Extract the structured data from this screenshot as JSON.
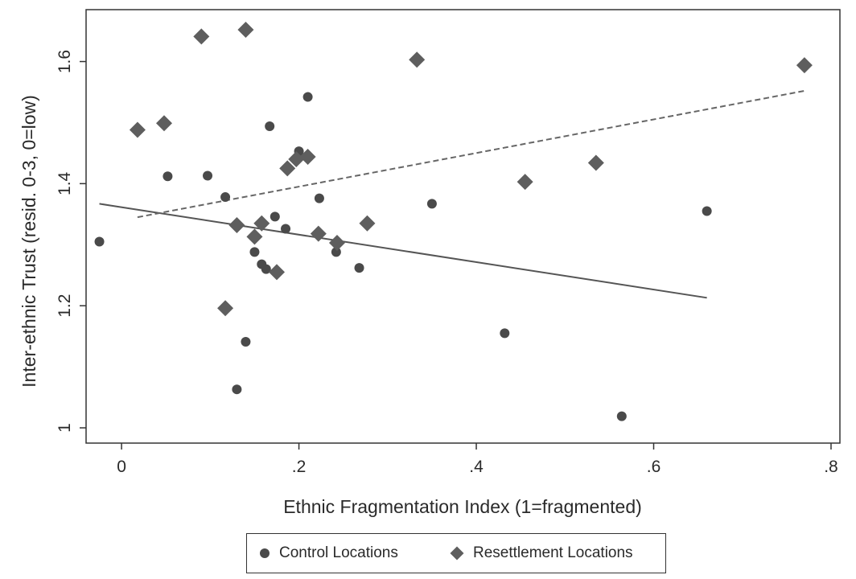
{
  "chart_data": {
    "type": "scatter",
    "xlabel": "Ethnic Fragmentation Index (1=fragmented)",
    "ylabel": "Inter-ethnic Trust (resid. 0-3, 0=low)",
    "xlim": [
      -0.04,
      0.81
    ],
    "ylim": [
      0.975,
      1.685
    ],
    "x_ticks": [
      {
        "value": 0,
        "label": "0"
      },
      {
        "value": 0.2,
        "label": ".2"
      },
      {
        "value": 0.4,
        "label": ".4"
      },
      {
        "value": 0.6,
        "label": ".6"
      },
      {
        "value": 0.8,
        "label": ".8"
      }
    ],
    "y_ticks": [
      {
        "value": 1.0,
        "label": "1"
      },
      {
        "value": 1.2,
        "label": "1.2"
      },
      {
        "value": 1.4,
        "label": "1.4"
      },
      {
        "value": 1.6,
        "label": "1.6"
      }
    ],
    "grid": false,
    "legend": "bottom",
    "series": [
      {
        "name": "Control Locations",
        "marker": "circle",
        "color": "#4a4a4a",
        "points": [
          [
            -0.025,
            1.305
          ],
          [
            0.052,
            1.412
          ],
          [
            0.097,
            1.413
          ],
          [
            0.117,
            1.378
          ],
          [
            0.13,
            1.063
          ],
          [
            0.14,
            1.141
          ],
          [
            0.15,
            1.288
          ],
          [
            0.158,
            1.268
          ],
          [
            0.163,
            1.26
          ],
          [
            0.167,
            1.494
          ],
          [
            0.173,
            1.346
          ],
          [
            0.185,
            1.326
          ],
          [
            0.2,
            1.453
          ],
          [
            0.21,
            1.542
          ],
          [
            0.223,
            1.376
          ],
          [
            0.242,
            1.288
          ],
          [
            0.268,
            1.262
          ],
          [
            0.35,
            1.367
          ],
          [
            0.432,
            1.155
          ],
          [
            0.564,
            1.019
          ],
          [
            0.66,
            1.355
          ]
        ]
      },
      {
        "name": "Resettlement Locations",
        "marker": "diamond",
        "color": "#5e5e5e",
        "points": [
          [
            0.018,
            1.488
          ],
          [
            0.048,
            1.499
          ],
          [
            0.09,
            1.641
          ],
          [
            0.117,
            1.196
          ],
          [
            0.14,
            1.652
          ],
          [
            0.13,
            1.332
          ],
          [
            0.15,
            1.313
          ],
          [
            0.158,
            1.335
          ],
          [
            0.175,
            1.255
          ],
          [
            0.187,
            1.425
          ],
          [
            0.197,
            1.44
          ],
          [
            0.21,
            1.444
          ],
          [
            0.222,
            1.318
          ],
          [
            0.243,
            1.303
          ],
          [
            0.277,
            1.335
          ],
          [
            0.333,
            1.603
          ],
          [
            0.455,
            1.403
          ],
          [
            0.535,
            1.434
          ],
          [
            0.77,
            1.594
          ]
        ]
      }
    ],
    "fit_lines": [
      {
        "series": "Control Locations",
        "style": "solid",
        "color": "#555555",
        "x": [
          -0.025,
          0.66
        ],
        "y": [
          1.367,
          1.213
        ]
      },
      {
        "series": "Resettlement Locations",
        "style": "dashed",
        "color": "#666666",
        "x": [
          0.018,
          0.77
        ],
        "y": [
          1.345,
          1.552
        ]
      }
    ]
  }
}
